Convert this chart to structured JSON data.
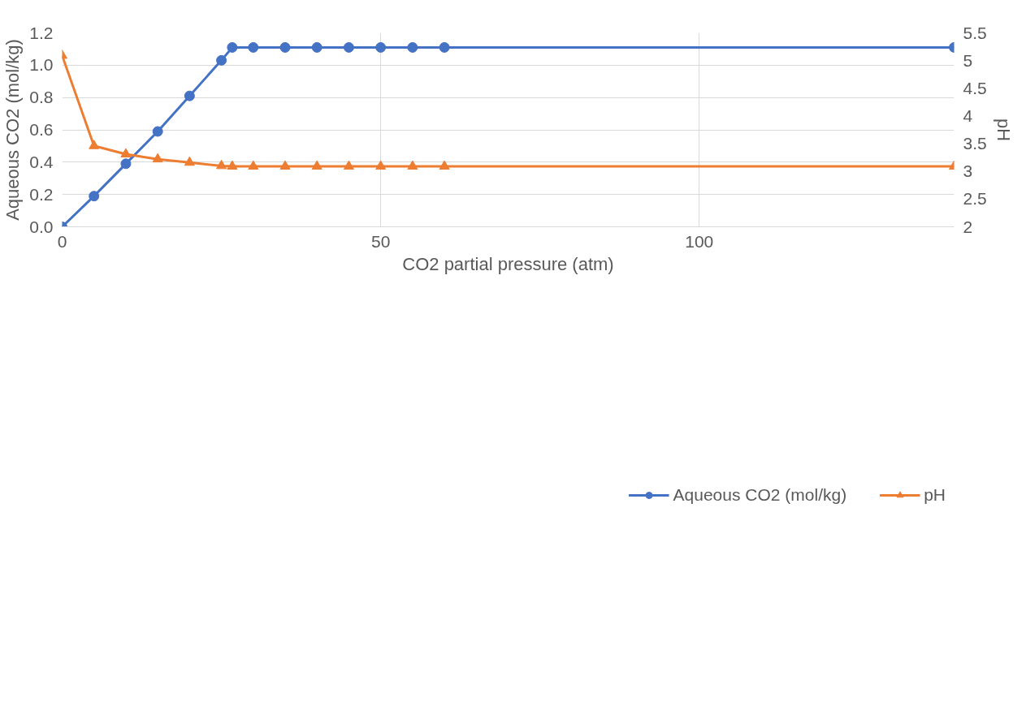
{
  "chart_data": {
    "type": "line",
    "xlabel": "CO2 partial pressure (atm)",
    "ylabel": "Aqueous CO2 (mol/kg)",
    "y2label": "pH",
    "xlim": [
      0,
      140
    ],
    "xticks": [
      0,
      50,
      100
    ],
    "ylim": [
      0,
      1.2
    ],
    "yticks": [
      {
        "value": 0,
        "label": "0.0"
      },
      {
        "value": 0.2,
        "label": "0.2"
      },
      {
        "value": 0.4,
        "label": "0.4"
      },
      {
        "value": 0.6,
        "label": "0.6"
      },
      {
        "value": 0.8,
        "label": "0.8"
      },
      {
        "value": 1.0,
        "label": "1.0"
      },
      {
        "value": 1.2,
        "label": "1.2"
      }
    ],
    "y2lim": [
      2,
      5.5
    ],
    "y2ticks": [
      2,
      2.5,
      3,
      3.5,
      4,
      4.5,
      5,
      5.5
    ],
    "grid": true,
    "legend": "bottom",
    "series": [
      {
        "name": "Aqueous CO2 (mol/kg)",
        "color": "#4472c4",
        "marker": "circle",
        "x": [
          0,
          5,
          10,
          15,
          20,
          25,
          26.7,
          30,
          35,
          40,
          45,
          50,
          55,
          60,
          140
        ],
        "values": [
          0,
          0.19,
          0.39,
          0.59,
          0.81,
          1.03,
          1.11,
          1.11,
          1.11,
          1.11,
          1.11,
          1.11,
          1.11,
          1.11,
          1.11
        ]
      },
      {
        "name": "pH",
        "color": "#ed7d31",
        "marker": "triangle",
        "axis": "y2",
        "x": [
          0,
          5,
          10,
          15,
          20,
          25,
          26.7,
          30,
          35,
          40,
          45,
          50,
          55,
          60,
          140
        ],
        "values": [
          5.09,
          3.46,
          3.31,
          3.22,
          3.16,
          3.1,
          3.09,
          3.09,
          3.09,
          3.09,
          3.09,
          3.09,
          3.09,
          3.09,
          3.09
        ]
      }
    ]
  }
}
